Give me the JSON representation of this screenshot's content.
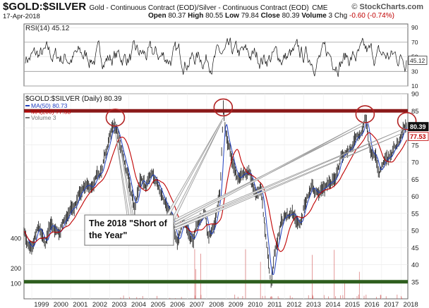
{
  "header": {
    "ticker": "$GOLD:$SILVER",
    "description": "Gold - Continuous Contract (EOD)/Silver - Continuous Contract (EOD)",
    "exchange": "CME",
    "date": "17-Apr-2018",
    "brand": "StockCharts.com",
    "ohlc": [
      {
        "label": "Open",
        "value": "80.37"
      },
      {
        "label": "High",
        "value": "80.55"
      },
      {
        "label": "Low",
        "value": "79.84"
      },
      {
        "label": "Close",
        "value": "80.39"
      },
      {
        "label": "Volume",
        "value": "3"
      }
    ],
    "chg_label": "Chg",
    "chg_value": "-0.60 (-0.74%)"
  },
  "chart_data": [
    {
      "type": "line",
      "title": "RSI(14) 45.12",
      "legend": "RSI(14) 45.12",
      "ylim": [
        10,
        95
      ],
      "yticks": [
        10,
        30,
        50,
        70,
        90
      ],
      "reference_lines": [
        30,
        70
      ],
      "last_value_badge": "45.12",
      "series": [
        {
          "name": "RSI(14)",
          "last": 45.12,
          "oscillates_between": [
            20,
            80
          ]
        }
      ]
    },
    {
      "type": "line",
      "title": "$GOLD:$SILVER (Daily) 80.39",
      "grid": true,
      "x_labels": [
        "1999",
        "2000",
        "2001",
        "2002",
        "2003",
        "2004",
        "2005",
        "2006",
        "2007",
        "2008",
        "2009",
        "2010",
        "2011",
        "2012",
        "2013",
        "2014",
        "2015",
        "2016",
        "2017",
        "2018"
      ],
      "xlim": [
        1998.6,
        2018.35
      ],
      "ylim": [
        30,
        90
      ],
      "yticks": [
        35,
        40,
        45,
        50,
        55,
        60,
        65,
        70,
        75,
        80,
        85,
        90
      ],
      "volume_ticks": [
        {
          "label": "400",
          "value": 400
        },
        {
          "label": "200",
          "value": 200
        },
        {
          "label": "100",
          "value": 100
        }
      ],
      "badges": [
        {
          "label": "80.39",
          "value": 80.39,
          "color": "#000000"
        },
        {
          "label": "77.53",
          "value": 77.53,
          "color": "#c00000"
        }
      ],
      "legend": [
        {
          "label": "$GOLD:$SILVER (Daily) 80.39",
          "color": "#000000"
        },
        {
          "label": "MA(50) 80.73",
          "color": "#1f3fbf"
        },
        {
          "label": "MA(200) 77.53",
          "color": "#c00000"
        },
        {
          "label": "Volume 3",
          "color": "#777777"
        }
      ],
      "series": [
        {
          "name": "$GOLD:$SILVER",
          "points": [
            [
              1998.6,
              50
            ],
            [
              1999.0,
              45
            ],
            [
              1999.3,
              50
            ],
            [
              1999.7,
              46
            ],
            [
              2000.0,
              52
            ],
            [
              2000.4,
              50
            ],
            [
              2000.8,
              55
            ],
            [
              2001.2,
              58
            ],
            [
              2001.6,
              62
            ],
            [
              2002.0,
              63
            ],
            [
              2002.4,
              66
            ],
            [
              2002.8,
              72
            ],
            [
              2003.2,
              82
            ],
            [
              2003.4,
              79
            ],
            [
              2003.7,
              72
            ],
            [
              2004.0,
              64
            ],
            [
              2004.3,
              57
            ],
            [
              2004.6,
              65
            ],
            [
              2004.9,
              63
            ],
            [
              2005.2,
              66
            ],
            [
              2005.6,
              62
            ],
            [
              2005.9,
              58
            ],
            [
              2006.2,
              54
            ],
            [
              2006.5,
              46
            ],
            [
              2006.8,
              52
            ],
            [
              2007.0,
              50
            ],
            [
              2007.3,
              48
            ],
            [
              2007.6,
              52
            ],
            [
              2007.9,
              55
            ],
            [
              2008.1,
              48
            ],
            [
              2008.4,
              52
            ],
            [
              2008.7,
              62
            ],
            [
              2008.85,
              86
            ],
            [
              2009.0,
              78
            ],
            [
              2009.3,
              70
            ],
            [
              2009.6,
              64
            ],
            [
              2009.9,
              66
            ],
            [
              2010.2,
              68
            ],
            [
              2010.5,
              60
            ],
            [
              2010.8,
              62
            ],
            [
              2010.9,
              55
            ],
            [
              2011.1,
              45
            ],
            [
              2011.3,
              33
            ],
            [
              2011.5,
              44
            ],
            [
              2011.8,
              52
            ],
            [
              2012.0,
              54
            ],
            [
              2012.4,
              55
            ],
            [
              2012.8,
              52
            ],
            [
              2013.0,
              57
            ],
            [
              2013.4,
              62
            ],
            [
              2013.8,
              60
            ],
            [
              2014.2,
              64
            ],
            [
              2014.6,
              66
            ],
            [
              2014.9,
              72
            ],
            [
              2015.3,
              74
            ],
            [
              2015.7,
              76
            ],
            [
              2016.0,
              80
            ],
            [
              2016.2,
              83
            ],
            [
              2016.4,
              74
            ],
            [
              2016.7,
              72
            ],
            [
              2016.85,
              66
            ],
            [
              2017.2,
              70
            ],
            [
              2017.6,
              74
            ],
            [
              2017.9,
              76
            ],
            [
              2018.1,
              79
            ],
            [
              2018.3,
              80.39
            ]
          ]
        },
        {
          "name": "MA(50)",
          "last": 80.73
        },
        {
          "name": "MA(200)",
          "last": 77.53
        }
      ],
      "horizontal_lines": [
        {
          "value": 85,
          "color": "#8b1a1a",
          "label": "resistance"
        },
        {
          "value": 35,
          "color": "#2e5e1e",
          "label": "support"
        }
      ],
      "circles": [
        {
          "x": 2003.3,
          "y": 83
        },
        {
          "x": 2008.85,
          "y": 86
        },
        {
          "x": 2016.15,
          "y": 84
        },
        {
          "x": 2018.3,
          "y": 82
        }
      ],
      "annotation": {
        "lines": [
          "The 2018 \"Short of",
          "the Year\""
        ]
      }
    }
  ]
}
